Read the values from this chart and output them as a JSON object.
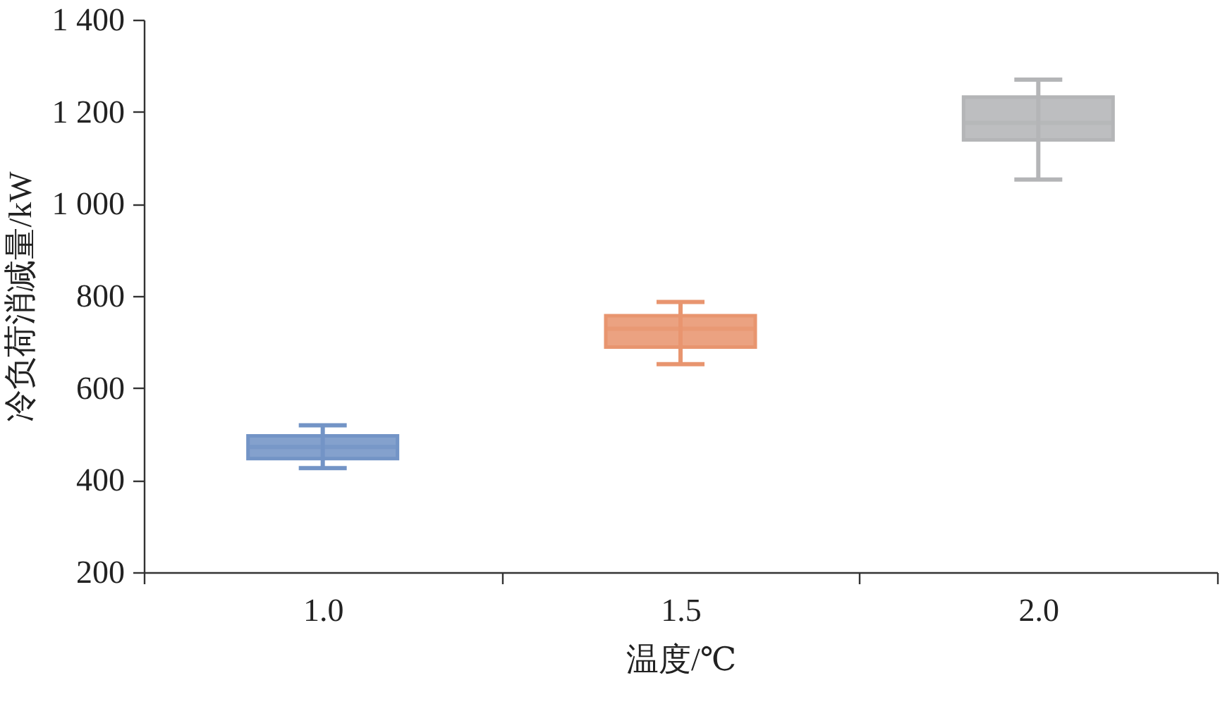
{
  "chart_data": {
    "type": "box",
    "categories": [
      "1.0",
      "1.5",
      "2.0"
    ],
    "boxes": [
      {
        "low": 426,
        "q1": 447,
        "median": 472,
        "q3": 496,
        "high": 519
      },
      {
        "low": 652,
        "q1": 689,
        "median": 729,
        "q3": 757,
        "high": 787
      },
      {
        "low": 1053,
        "q1": 1139,
        "median": 1176,
        "q3": 1232,
        "high": 1270
      }
    ],
    "colors": [
      "#7394c6",
      "#e8956f",
      "#b4b5b7"
    ],
    "xlabel": "温度/℃",
    "ylabel": "冷负荷消减量/kW",
    "ylim": [
      200,
      1400
    ],
    "yticks": [
      200,
      400,
      600,
      800,
      {
        "value": 1000,
        "label": "1 000"
      },
      {
        "value": 1200,
        "label": "1 200"
      },
      {
        "value": 1400,
        "label": "1 400"
      }
    ],
    "grid": false
  }
}
